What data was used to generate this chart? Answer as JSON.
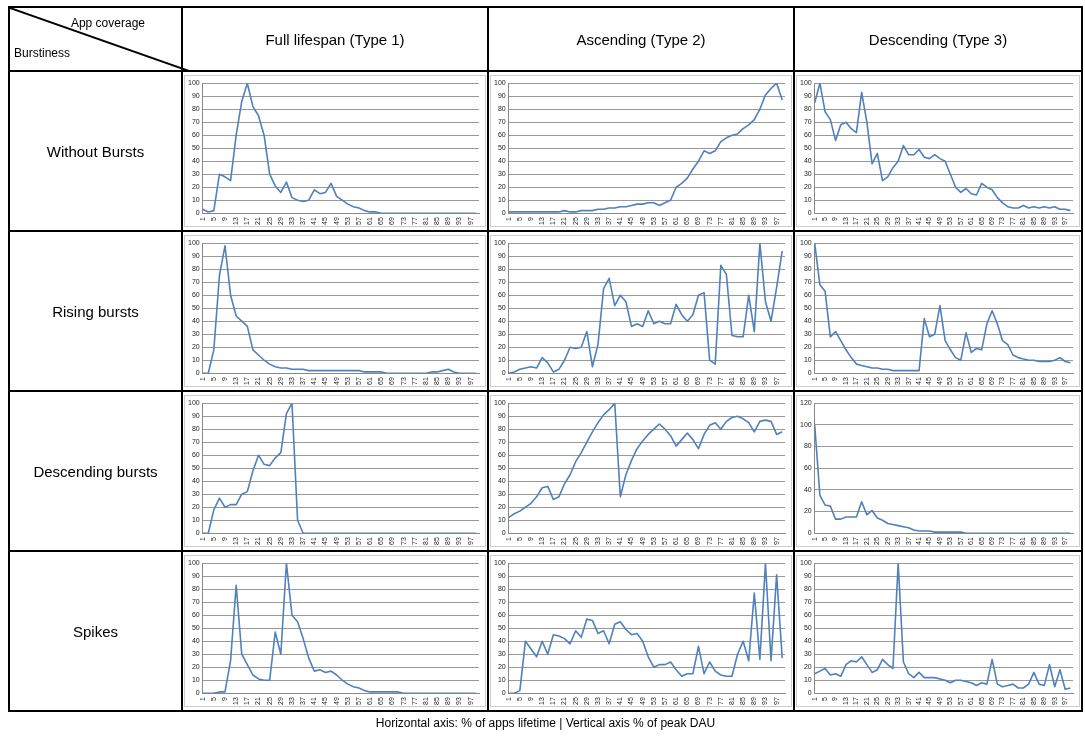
{
  "chart_data": [
    {
      "type": "other",
      "annotations": [
        "App coverage",
        "Burstiness",
        "Full lifespan (Type 1)",
        "Ascending (Type 2)",
        "Descending (Type 3)",
        "Without Bursts",
        "Rising bursts",
        "Descending bursts",
        "Spikes",
        "Horizontal axis: % of  apps lifetime | Vertical axis % of peak DAU"
      ]
    },
    {
      "type": "line",
      "x": [
        1,
        3,
        5,
        7,
        9,
        11,
        13,
        15,
        17,
        19,
        21,
        23,
        25,
        27,
        29,
        31,
        33,
        35,
        37,
        39,
        41,
        43,
        45,
        47,
        49,
        51,
        53,
        55,
        57,
        59,
        61,
        63,
        65,
        67,
        69,
        71,
        73,
        75,
        77,
        79,
        81,
        83,
        85,
        87,
        89,
        91,
        93,
        95,
        97,
        99
      ],
      "xlim": [
        1,
        100
      ],
      "xticks": [
        1,
        5,
        9,
        13,
        17,
        21,
        25,
        29,
        33,
        37,
        41,
        45,
        49,
        53,
        57,
        61,
        65,
        69,
        73,
        77,
        81,
        85,
        89,
        93,
        97
      ],
      "ylim": [
        0,
        100
      ],
      "yticks": [
        0,
        10,
        20,
        30,
        40,
        50,
        60,
        70,
        80,
        90,
        100
      ],
      "grid": "y",
      "color": "#4f81bd",
      "values": [
        3,
        1,
        2,
        30,
        28,
        25,
        60,
        86,
        100,
        82,
        75,
        60,
        30,
        21,
        16,
        24,
        12,
        10,
        9,
        10,
        18,
        15,
        16,
        23,
        13,
        10,
        7,
        5,
        4,
        2,
        1,
        1,
        0,
        0,
        0,
        0,
        0,
        0,
        0,
        0,
        0,
        0,
        0,
        0,
        0,
        0,
        0,
        0,
        0,
        0
      ]
    },
    {
      "type": "line",
      "x": [
        1,
        3,
        5,
        7,
        9,
        11,
        13,
        15,
        17,
        19,
        21,
        23,
        25,
        27,
        29,
        31,
        33,
        35,
        37,
        39,
        41,
        43,
        45,
        47,
        49,
        51,
        53,
        55,
        57,
        59,
        61,
        63,
        65,
        67,
        69,
        71,
        73,
        75,
        77,
        79,
        81,
        83,
        85,
        87,
        89,
        91,
        93,
        95,
        97,
        99
      ],
      "xlim": [
        1,
        100
      ],
      "xticks": [
        1,
        5,
        9,
        13,
        17,
        21,
        25,
        29,
        33,
        37,
        41,
        45,
        49,
        53,
        57,
        61,
        65,
        69,
        73,
        77,
        81,
        85,
        89,
        93,
        97
      ],
      "ylim": [
        0,
        100
      ],
      "yticks": [
        0,
        10,
        20,
        30,
        40,
        50,
        60,
        70,
        80,
        90,
        100
      ],
      "grid": "y",
      "color": "#4f81bd",
      "values": [
        1,
        1,
        1,
        1,
        1,
        1,
        1,
        1,
        1,
        1,
        2,
        1,
        1,
        2,
        2,
        2,
        3,
        3,
        4,
        4,
        5,
        5,
        6,
        7,
        7,
        8,
        8,
        6,
        8,
        10,
        20,
        23,
        27,
        34,
        40,
        48,
        46,
        48,
        55,
        58,
        60,
        61,
        65,
        68,
        72,
        80,
        91,
        96,
        100,
        87
      ]
    },
    {
      "type": "line",
      "x": [
        1,
        3,
        5,
        7,
        9,
        11,
        13,
        15,
        17,
        19,
        21,
        23,
        25,
        27,
        29,
        31,
        33,
        35,
        37,
        39,
        41,
        43,
        45,
        47,
        49,
        51,
        53,
        55,
        57,
        59,
        61,
        63,
        65,
        67,
        69,
        71,
        73,
        75,
        77,
        79,
        81,
        83,
        85,
        87,
        89,
        91,
        93,
        95,
        97,
        99
      ],
      "xlim": [
        1,
        100
      ],
      "xticks": [
        1,
        5,
        9,
        13,
        17,
        21,
        25,
        29,
        33,
        37,
        41,
        45,
        49,
        53,
        57,
        61,
        65,
        69,
        73,
        77,
        81,
        85,
        89,
        93,
        97
      ],
      "ylim": [
        0,
        100
      ],
      "yticks": [
        0,
        10,
        20,
        30,
        40,
        50,
        60,
        70,
        80,
        90,
        100
      ],
      "grid": "y",
      "color": "#4f81bd",
      "values": [
        85,
        100,
        78,
        72,
        56,
        68,
        70,
        65,
        62,
        93,
        70,
        38,
        46,
        25,
        28,
        35,
        40,
        52,
        45,
        45,
        49,
        43,
        42,
        45,
        42,
        40,
        30,
        20,
        16,
        19,
        15,
        14,
        23,
        20,
        18,
        12,
        8,
        5,
        4,
        4,
        6,
        4,
        5,
        4,
        5,
        4,
        5,
        3,
        3,
        2
      ]
    },
    {
      "type": "line",
      "x": [
        1,
        3,
        5,
        7,
        9,
        11,
        13,
        15,
        17,
        19,
        21,
        23,
        25,
        27,
        29,
        31,
        33,
        35,
        37,
        39,
        41,
        43,
        45,
        47,
        49,
        51,
        53,
        55,
        57,
        59,
        61,
        63,
        65,
        67,
        69,
        71,
        73,
        75,
        77,
        79,
        81,
        83,
        85,
        87,
        89,
        91,
        93,
        95,
        97,
        99
      ],
      "xlim": [
        1,
        100
      ],
      "xticks": [
        1,
        5,
        9,
        13,
        17,
        21,
        25,
        29,
        33,
        37,
        41,
        45,
        49,
        53,
        57,
        61,
        65,
        69,
        73,
        77,
        81,
        85,
        89,
        93,
        97
      ],
      "ylim": [
        0,
        100
      ],
      "yticks": [
        0,
        10,
        20,
        30,
        40,
        50,
        60,
        70,
        80,
        90,
        100
      ],
      "grid": "y",
      "color": "#4f81bd",
      "values": [
        0,
        0,
        18,
        75,
        98,
        60,
        44,
        40,
        36,
        18,
        14,
        10,
        7,
        5,
        4,
        4,
        3,
        3,
        3,
        2,
        2,
        2,
        2,
        2,
        2,
        2,
        2,
        2,
        2,
        1,
        1,
        1,
        1,
        0,
        0,
        0,
        0,
        0,
        0,
        0,
        0,
        1,
        1,
        2,
        3,
        1,
        0,
        0,
        0,
        0
      ]
    },
    {
      "type": "line",
      "x": [
        1,
        3,
        5,
        7,
        9,
        11,
        13,
        15,
        17,
        19,
        21,
        23,
        25,
        27,
        29,
        31,
        33,
        35,
        37,
        39,
        41,
        43,
        45,
        47,
        49,
        51,
        53,
        55,
        57,
        59,
        61,
        63,
        65,
        67,
        69,
        71,
        73,
        75,
        77,
        79,
        81,
        83,
        85,
        87,
        89,
        91,
        93,
        95,
        97,
        99
      ],
      "xlim": [
        1,
        100
      ],
      "xticks": [
        1,
        5,
        9,
        13,
        17,
        21,
        25,
        29,
        33,
        37,
        41,
        45,
        49,
        53,
        57,
        61,
        65,
        69,
        73,
        77,
        81,
        85,
        89,
        93,
        97
      ],
      "ylim": [
        0,
        100
      ],
      "yticks": [
        0,
        10,
        20,
        30,
        40,
        50,
        60,
        70,
        80,
        90,
        100
      ],
      "grid": "y",
      "color": "#4f81bd",
      "values": [
        0,
        1,
        3,
        4,
        5,
        4,
        12,
        8,
        1,
        3,
        10,
        20,
        19,
        20,
        32,
        5,
        22,
        65,
        73,
        52,
        60,
        55,
        36,
        38,
        36,
        48,
        38,
        40,
        38,
        38,
        53,
        45,
        40,
        45,
        60,
        62,
        10,
        7,
        83,
        76,
        29,
        28,
        28,
        60,
        32,
        100,
        55,
        40,
        66,
        94
      ]
    },
    {
      "type": "line",
      "x": [
        1,
        3,
        5,
        7,
        9,
        11,
        13,
        15,
        17,
        19,
        21,
        23,
        25,
        27,
        29,
        31,
        33,
        35,
        37,
        39,
        41,
        43,
        45,
        47,
        49,
        51,
        53,
        55,
        57,
        59,
        61,
        63,
        65,
        67,
        69,
        71,
        73,
        75,
        77,
        79,
        81,
        83,
        85,
        87,
        89,
        91,
        93,
        95,
        97,
        99
      ],
      "xlim": [
        1,
        100
      ],
      "xticks": [
        1,
        5,
        9,
        13,
        17,
        21,
        25,
        29,
        33,
        37,
        41,
        45,
        49,
        53,
        57,
        61,
        65,
        69,
        73,
        77,
        81,
        85,
        89,
        93,
        97
      ],
      "ylim": [
        0,
        100
      ],
      "yticks": [
        0,
        10,
        20,
        30,
        40,
        50,
        60,
        70,
        80,
        90,
        100
      ],
      "grid": "y",
      "color": "#4f81bd",
      "values": [
        100,
        68,
        63,
        28,
        32,
        25,
        18,
        12,
        7,
        6,
        5,
        4,
        4,
        3,
        3,
        2,
        2,
        2,
        2,
        2,
        2,
        42,
        28,
        30,
        52,
        25,
        18,
        12,
        10,
        31,
        16,
        19,
        18,
        38,
        48,
        38,
        25,
        22,
        14,
        12,
        11,
        10,
        10,
        9,
        9,
        9,
        10,
        12,
        9,
        8
      ]
    },
    {
      "type": "line",
      "x": [
        1,
        3,
        5,
        7,
        9,
        11,
        13,
        15,
        17,
        19,
        21,
        23,
        25,
        27,
        29,
        31,
        33,
        35,
        37,
        39,
        41,
        43,
        45,
        47,
        49,
        51,
        53,
        55,
        57,
        59,
        61,
        63,
        65,
        67,
        69,
        71,
        73,
        75,
        77,
        79,
        81,
        83,
        85,
        87,
        89,
        91,
        93,
        95,
        97,
        99
      ],
      "xlim": [
        1,
        100
      ],
      "xticks": [
        1,
        5,
        9,
        13,
        17,
        21,
        25,
        29,
        33,
        37,
        41,
        45,
        49,
        53,
        57,
        61,
        65,
        69,
        73,
        77,
        81,
        85,
        89,
        93,
        97
      ],
      "ylim": [
        0,
        100
      ],
      "yticks": [
        0,
        10,
        20,
        30,
        40,
        50,
        60,
        70,
        80,
        90,
        100
      ],
      "grid": "y",
      "color": "#4f81bd",
      "values": [
        0,
        0,
        18,
        27,
        20,
        22,
        22,
        30,
        32,
        48,
        60,
        53,
        52,
        58,
        62,
        92,
        100,
        10,
        0,
        0,
        0,
        0,
        0,
        0,
        0,
        0,
        0,
        0,
        0,
        0,
        0,
        0,
        0,
        0,
        0,
        0,
        0,
        0,
        0,
        0,
        0,
        0,
        0,
        0,
        0,
        0,
        0,
        0,
        0,
        0
      ]
    },
    {
      "type": "line",
      "x": [
        1,
        3,
        5,
        7,
        9,
        11,
        13,
        15,
        17,
        19,
        21,
        23,
        25,
        27,
        29,
        31,
        33,
        35,
        37,
        39,
        41,
        43,
        45,
        47,
        49,
        51,
        53,
        55,
        57,
        59,
        61,
        63,
        65,
        67,
        69,
        71,
        73,
        75,
        77,
        79,
        81,
        83,
        85,
        87,
        89,
        91,
        93,
        95,
        97,
        99
      ],
      "xlim": [
        1,
        100
      ],
      "xticks": [
        1,
        5,
        9,
        13,
        17,
        21,
        25,
        29,
        33,
        37,
        41,
        45,
        49,
        53,
        57,
        61,
        65,
        69,
        73,
        77,
        81,
        85,
        89,
        93,
        97
      ],
      "ylim": [
        0,
        100
      ],
      "yticks": [
        0,
        10,
        20,
        30,
        40,
        50,
        60,
        70,
        80,
        90,
        100
      ],
      "grid": "y",
      "color": "#4f81bd",
      "values": [
        12,
        15,
        17,
        20,
        23,
        28,
        35,
        36,
        26,
        28,
        38,
        45,
        55,
        62,
        70,
        78,
        85,
        91,
        95,
        100,
        28,
        45,
        56,
        65,
        71,
        76,
        80,
        84,
        80,
        75,
        67,
        72,
        77,
        72,
        65,
        76,
        83,
        85,
        80,
        86,
        89,
        90,
        88,
        85,
        78,
        86,
        87,
        86,
        76,
        78
      ]
    },
    {
      "type": "line",
      "x": [
        1,
        3,
        5,
        7,
        9,
        11,
        13,
        15,
        17,
        19,
        21,
        23,
        25,
        27,
        29,
        31,
        33,
        35,
        37,
        39,
        41,
        43,
        45,
        47,
        49,
        51,
        53,
        55,
        57,
        59,
        61,
        63,
        65,
        67,
        69,
        71,
        73,
        75,
        77,
        79,
        81,
        83,
        85,
        87,
        89,
        91,
        93,
        95,
        97,
        99
      ],
      "xlim": [
        1,
        100
      ],
      "xticks": [
        1,
        5,
        9,
        13,
        17,
        21,
        25,
        29,
        33,
        37,
        41,
        45,
        49,
        53,
        57,
        61,
        65,
        69,
        73,
        77,
        81,
        85,
        89,
        93,
        97
      ],
      "ylim": [
        0,
        120
      ],
      "yticks": [
        0,
        20,
        40,
        60,
        80,
        100,
        120
      ],
      "grid": "y",
      "color": "#4f81bd",
      "values": [
        100,
        35,
        26,
        25,
        13,
        13,
        15,
        15,
        15,
        29,
        17,
        21,
        14,
        12,
        9,
        8,
        7,
        6,
        5,
        3,
        2,
        2,
        2,
        1,
        1,
        1,
        1,
        1,
        1,
        0,
        0,
        0,
        0,
        0,
        0,
        0,
        0,
        0,
        0,
        0,
        0,
        0,
        0,
        0,
        0,
        0,
        0,
        0,
        0,
        0
      ]
    },
    {
      "type": "line",
      "x": [
        1,
        3,
        5,
        7,
        9,
        11,
        13,
        15,
        17,
        19,
        21,
        23,
        25,
        27,
        29,
        31,
        33,
        35,
        37,
        39,
        41,
        43,
        45,
        47,
        49,
        51,
        53,
        55,
        57,
        59,
        61,
        63,
        65,
        67,
        69,
        71,
        73,
        75,
        77,
        79,
        81,
        83,
        85,
        87,
        89,
        91,
        93,
        95,
        97,
        99
      ],
      "xlim": [
        1,
        100
      ],
      "xticks": [
        1,
        5,
        9,
        13,
        17,
        21,
        25,
        29,
        33,
        37,
        41,
        45,
        49,
        53,
        57,
        61,
        65,
        69,
        73,
        77,
        81,
        85,
        89,
        93,
        97
      ],
      "ylim": [
        0,
        100
      ],
      "yticks": [
        0,
        10,
        20,
        30,
        40,
        50,
        60,
        70,
        80,
        90,
        100
      ],
      "grid": "y",
      "color": "#4f81bd",
      "values": [
        0,
        0,
        0,
        1,
        1,
        25,
        83,
        30,
        22,
        14,
        11,
        10,
        10,
        47,
        30,
        100,
        60,
        55,
        42,
        27,
        17,
        18,
        16,
        17,
        14,
        10,
        7,
        5,
        4,
        2,
        1,
        1,
        1,
        1,
        1,
        1,
        0,
        0,
        0,
        0,
        0,
        0,
        0,
        0,
        0,
        0,
        0,
        0,
        0,
        0
      ]
    },
    {
      "type": "line",
      "x": [
        1,
        3,
        5,
        7,
        9,
        11,
        13,
        15,
        17,
        19,
        21,
        23,
        25,
        27,
        29,
        31,
        33,
        35,
        37,
        39,
        41,
        43,
        45,
        47,
        49,
        51,
        53,
        55,
        57,
        59,
        61,
        63,
        65,
        67,
        69,
        71,
        73,
        75,
        77,
        79,
        81,
        83,
        85,
        87,
        89,
        91,
        93,
        95,
        97,
        99
      ],
      "xlim": [
        1,
        100
      ],
      "xticks": [
        1,
        5,
        9,
        13,
        17,
        21,
        25,
        29,
        33,
        37,
        41,
        45,
        49,
        53,
        57,
        61,
        65,
        69,
        73,
        77,
        81,
        85,
        89,
        93,
        97
      ],
      "ylim": [
        0,
        100
      ],
      "yticks": [
        0,
        10,
        20,
        30,
        40,
        50,
        60,
        70,
        80,
        90,
        100
      ],
      "grid": "y",
      "color": "#4f81bd",
      "values": [
        0,
        0,
        2,
        40,
        34,
        28,
        40,
        30,
        45,
        44,
        42,
        38,
        48,
        43,
        57,
        56,
        46,
        48,
        38,
        53,
        55,
        49,
        45,
        46,
        40,
        28,
        20,
        22,
        22,
        24,
        18,
        13,
        15,
        15,
        36,
        15,
        24,
        17,
        14,
        13,
        13,
        30,
        40,
        25,
        77,
        26,
        100,
        25,
        91,
        27
      ]
    },
    {
      "type": "line",
      "x": [
        1,
        3,
        5,
        7,
        9,
        11,
        13,
        15,
        17,
        19,
        21,
        23,
        25,
        27,
        29,
        31,
        33,
        35,
        37,
        39,
        41,
        43,
        45,
        47,
        49,
        51,
        53,
        55,
        57,
        59,
        61,
        63,
        65,
        67,
        69,
        71,
        73,
        75,
        77,
        79,
        81,
        83,
        85,
        87,
        89,
        91,
        93,
        95,
        97,
        99
      ],
      "xlim": [
        1,
        100
      ],
      "xticks": [
        1,
        5,
        9,
        13,
        17,
        21,
        25,
        29,
        33,
        37,
        41,
        45,
        49,
        53,
        57,
        61,
        65,
        69,
        73,
        77,
        81,
        85,
        89,
        93,
        97
      ],
      "ylim": [
        0,
        100
      ],
      "yticks": [
        0,
        10,
        20,
        30,
        40,
        50,
        60,
        70,
        80,
        90,
        100
      ],
      "grid": "y",
      "color": "#4f81bd",
      "values": [
        15,
        17,
        19,
        14,
        15,
        13,
        22,
        25,
        24,
        28,
        22,
        16,
        18,
        26,
        22,
        19,
        100,
        24,
        15,
        12,
        16,
        12,
        12,
        12,
        11,
        10,
        8,
        10,
        10,
        9,
        8,
        6,
        8,
        7,
        26,
        7,
        5,
        6,
        7,
        4,
        4,
        7,
        16,
        7,
        6,
        22,
        5,
        18,
        3,
        4
      ]
    }
  ]
}
